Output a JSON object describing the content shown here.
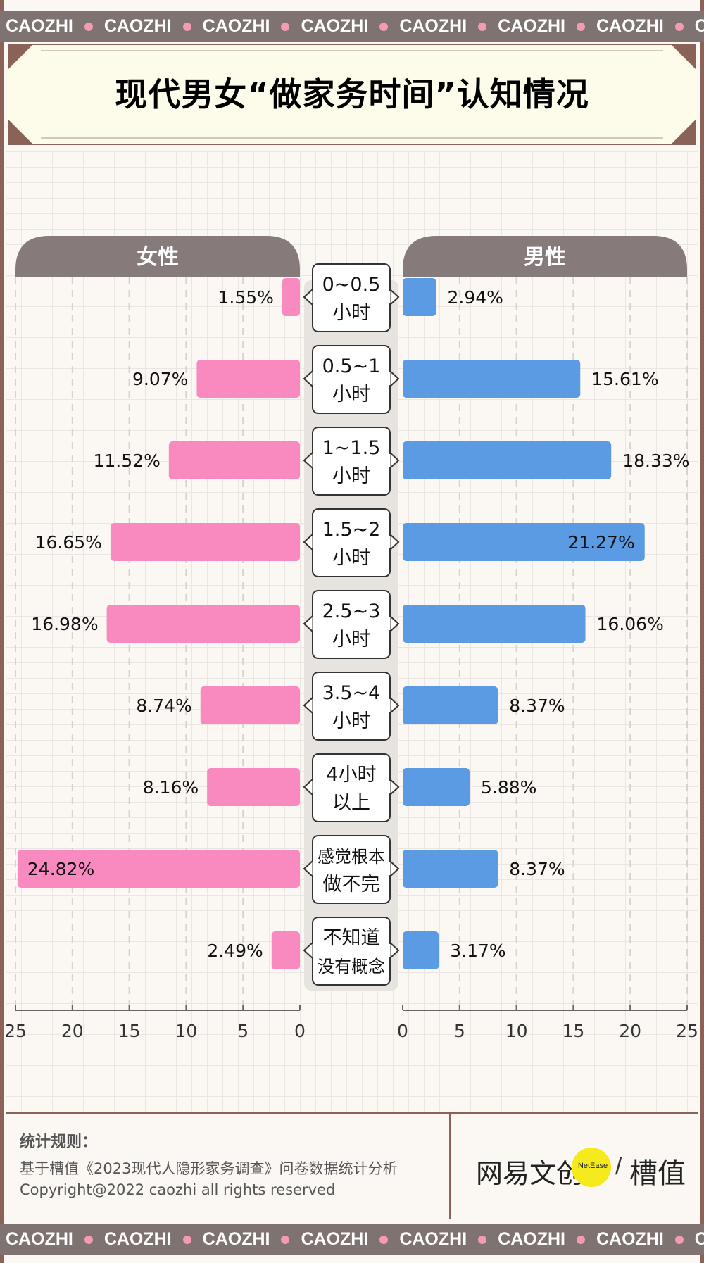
{
  "banner": {
    "word": "CAOZHI",
    "repeat": 8
  },
  "title": "现代男女“做家务时间”认知情况",
  "chart_data": {
    "type": "bar",
    "orientation": "horizontal-diverging",
    "title": "现代男女“做家务时间”认知情况",
    "categories": [
      [
        "0~0.5",
        "小时"
      ],
      [
        "0.5~1",
        "小时"
      ],
      [
        "1~1.5",
        "小时"
      ],
      [
        "1.5~2",
        "小时"
      ],
      [
        "2.5~3",
        "小时"
      ],
      [
        "3.5~4",
        "小时"
      ],
      [
        "4小时",
        "以上"
      ],
      [
        "感觉根本",
        "做不完"
      ],
      [
        "不知道",
        "没有概念"
      ]
    ],
    "series": [
      {
        "name": "女性",
        "color": "#f98ac0",
        "values": [
          1.55,
          9.07,
          11.52,
          16.65,
          16.98,
          8.74,
          8.16,
          24.82,
          2.49
        ],
        "labels": [
          "1.55%",
          "9.07%",
          "11.52%",
          "16.65%",
          "16.98%",
          "8.74%",
          "8.16%",
          "24.82%",
          "2.49%"
        ]
      },
      {
        "name": "男性",
        "color": "#5b9be3",
        "values": [
          2.94,
          15.61,
          18.33,
          21.27,
          16.06,
          8.37,
          5.88,
          8.37,
          3.17
        ],
        "labels": [
          "2.94%",
          "15.61%",
          "18.33%",
          "21.27%",
          "16.06%",
          "8.37%",
          "5.88%",
          "8.37%",
          "3.17%"
        ]
      }
    ],
    "xlim": [
      0,
      25
    ],
    "ticks": [
      0,
      5,
      10,
      15,
      20,
      25
    ],
    "tick_labels": [
      "0",
      "5",
      "10",
      "15",
      "20",
      "25"
    ],
    "header_color": "#877a7b"
  },
  "footer": {
    "rules_title": "统计规则：",
    "rules_line1": "基于槽值《2023现代人隐形家务调查》问卷数据统计分析",
    "rules_line2": "Copyright@2022 caozhi all rights reserved",
    "brand_left": "网易文创",
    "brand_netease": "NetEase",
    "brand_slash": "/",
    "brand_right": "槽值"
  }
}
